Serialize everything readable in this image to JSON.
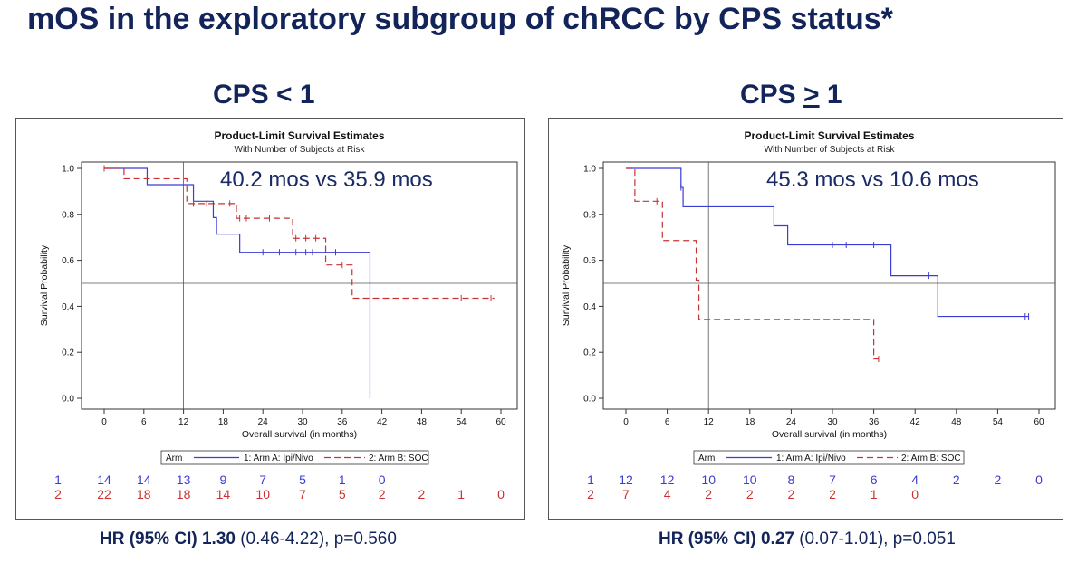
{
  "title": "mOS in the exploratory subgroup of chRCC by CPS status*",
  "chart_data": [
    {
      "type": "line",
      "panel_title": {
        "prefix": "CPS ",
        "op": "<",
        "value": " 1"
      },
      "title": "Product-Limit Survival Estimates",
      "subtitle": "With Number of Subjects at Risk",
      "annotation": "40.2 mos vs 35.9 mos",
      "xlabel": "Overall survival (in months)",
      "ylabel": "Survival Probability",
      "xlim": [
        0,
        60
      ],
      "ylim": [
        0,
        1
      ],
      "xticks": [
        0,
        6,
        12,
        18,
        24,
        30,
        36,
        42,
        48,
        54,
        60
      ],
      "yticks": [
        "0.0",
        "0.2",
        "0.4",
        "0.6",
        "0.8",
        "1.0"
      ],
      "ref_lines": {
        "x": 12,
        "y": 0.5
      },
      "legend": {
        "title": "Arm",
        "position": "bottom-center"
      },
      "series": [
        {
          "name": "1: Arm A: Ipi/Nivo",
          "color": "#3b3bd6",
          "dash": false,
          "steps": [
            [
              0,
              1.0
            ],
            [
              6.5,
              0.929
            ],
            [
              13.5,
              0.857
            ],
            [
              16.5,
              0.786
            ],
            [
              17,
              0.714
            ],
            [
              20.5,
              0.635
            ],
            [
              40.2,
              0.0
            ]
          ],
          "censors": [
            [
              24,
              0.635
            ],
            [
              26.5,
              0.635
            ],
            [
              29,
              0.635
            ],
            [
              30.5,
              0.635
            ],
            [
              31.5,
              0.635
            ],
            [
              35,
              0.635
            ]
          ],
          "at_risk_label": "1",
          "at_risk": [
            "14",
            "14",
            "13",
            "9",
            "7",
            "5",
            "1",
            "0"
          ]
        },
        {
          "name": "2: Arm B: SOC",
          "color": "#c83232",
          "dash": true,
          "steps": [
            [
              0,
              1.0
            ],
            [
              3,
              0.955
            ],
            [
              12.5,
              0.847
            ],
            [
              20,
              0.783
            ],
            [
              28.5,
              0.696
            ],
            [
              33.5,
              0.58
            ],
            [
              37.5,
              0.435
            ],
            [
              59,
              0.435
            ]
          ],
          "censors": [
            [
              0,
              1.0
            ],
            [
              13.5,
              0.847
            ],
            [
              15.5,
              0.847
            ],
            [
              19,
              0.847
            ],
            [
              20.5,
              0.783
            ],
            [
              21.5,
              0.783
            ],
            [
              25,
              0.783
            ],
            [
              29,
              0.696
            ],
            [
              30.5,
              0.696
            ],
            [
              32,
              0.696
            ],
            [
              36,
              0.58
            ],
            [
              54,
              0.435
            ],
            [
              58.5,
              0.435
            ]
          ],
          "at_risk_label": "2",
          "at_risk": [
            "22",
            "18",
            "18",
            "14",
            "10",
            "7",
            "5",
            "2",
            "2",
            "1",
            "0"
          ]
        }
      ],
      "hr": {
        "label": "HR (95% CI) ",
        "value": "1.30",
        "ci": " (0.46-4.22), p=0.560"
      }
    },
    {
      "type": "line",
      "panel_title": {
        "prefix": "CPS ",
        "op": ">",
        "value": " 1"
      },
      "title": "Product-Limit Survival Estimates",
      "subtitle": "With Number of Subjects at Risk",
      "annotation": "45.3 mos vs 10.6 mos",
      "xlabel": "Overall survival (in months)",
      "ylabel": "Survival Probability",
      "xlim": [
        0,
        60
      ],
      "ylim": [
        0,
        1
      ],
      "xticks": [
        0,
        6,
        12,
        18,
        24,
        30,
        36,
        42,
        48,
        54,
        60
      ],
      "yticks": [
        "0.0",
        "0.2",
        "0.4",
        "0.6",
        "0.8",
        "1.0"
      ],
      "ref_lines": {
        "x": 12,
        "y": 0.5
      },
      "legend": {
        "title": "Arm",
        "position": "bottom-center"
      },
      "series": [
        {
          "name": "1: Arm A: Ipi/Nivo",
          "color": "#3b3bd6",
          "dash": false,
          "steps": [
            [
              0,
              1.0
            ],
            [
              8,
              0.917
            ],
            [
              8.3,
              0.833
            ],
            [
              21.5,
              0.75
            ],
            [
              23.5,
              0.667
            ],
            [
              38.5,
              0.533
            ],
            [
              45.3,
              0.356
            ],
            [
              58.5,
              0.356
            ]
          ],
          "censors": [
            [
              8,
              0.917
            ],
            [
              30,
              0.667
            ],
            [
              32,
              0.667
            ],
            [
              36,
              0.667
            ],
            [
              44,
              0.533
            ],
            [
              58,
              0.356
            ],
            [
              58.5,
              0.356
            ]
          ],
          "at_risk_label": "1",
          "at_risk": [
            "12",
            "12",
            "10",
            "10",
            "8",
            "7",
            "6",
            "4",
            "2",
            "2",
            "0"
          ]
        },
        {
          "name": "2: Arm B: SOC",
          "color": "#c83232",
          "dash": true,
          "steps": [
            [
              0,
              1.0
            ],
            [
              1.3,
              0.857
            ],
            [
              5.3,
              0.686
            ],
            [
              10.2,
              0.514
            ],
            [
              10.6,
              0.343
            ],
            [
              36,
              0.171
            ],
            [
              36.7,
              0.171
            ]
          ],
          "censors": [
            [
              4.5,
              0.857
            ],
            [
              36.7,
              0.171
            ]
          ],
          "at_risk_label": "2",
          "at_risk": [
            "7",
            "4",
            "2",
            "2",
            "2",
            "2",
            "1",
            "0"
          ]
        }
      ],
      "hr": {
        "label": "HR (95% CI) ",
        "value": "0.27",
        "ci": " (0.07-1.01), p=0.051"
      }
    }
  ]
}
